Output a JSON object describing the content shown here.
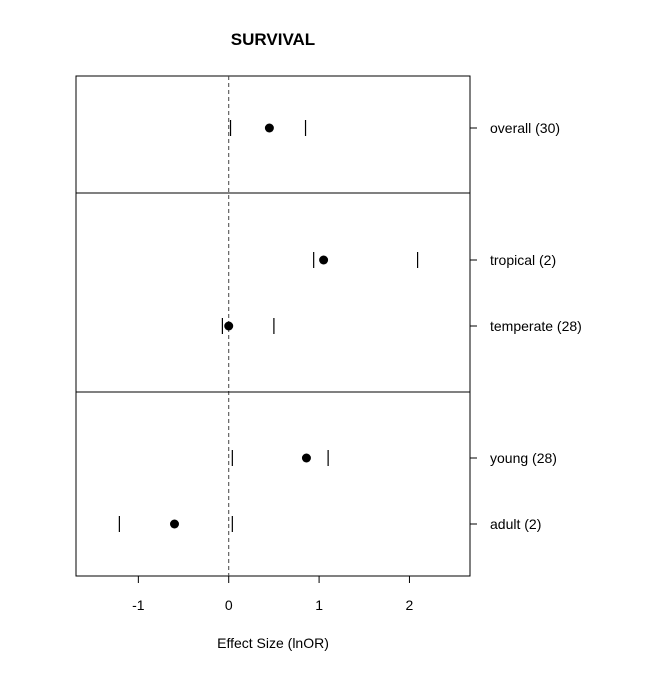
{
  "chart_data": {
    "type": "scatter",
    "subtype": "forest-plot",
    "title": "SURVIVAL",
    "xlabel": "Effect Size (lnOR)",
    "ylabel": "",
    "xlim": [
      -1.69,
      2.67
    ],
    "xticks": [
      -1,
      0,
      1,
      2
    ],
    "xtick_labels": [
      "-1",
      "0",
      "1",
      "2"
    ],
    "reference_line": 0,
    "groups": [
      {
        "rows": [
          {
            "label": "overall (30)",
            "estimate": 0.45,
            "lower": 0.02,
            "upper": 0.85
          }
        ]
      },
      {
        "rows": [
          {
            "label": "tropical (2)",
            "estimate": 1.05,
            "lower": 0.94,
            "upper": 2.09
          },
          {
            "label": "temperate (28)",
            "estimate": 0.0,
            "lower": -0.07,
            "upper": 0.5
          }
        ]
      },
      {
        "rows": [
          {
            "label": "young (28)",
            "estimate": 0.86,
            "lower": 0.04,
            "upper": 1.1
          },
          {
            "label": "adult (2)",
            "estimate": -0.6,
            "lower": -1.21,
            "upper": 0.04
          }
        ]
      }
    ]
  }
}
